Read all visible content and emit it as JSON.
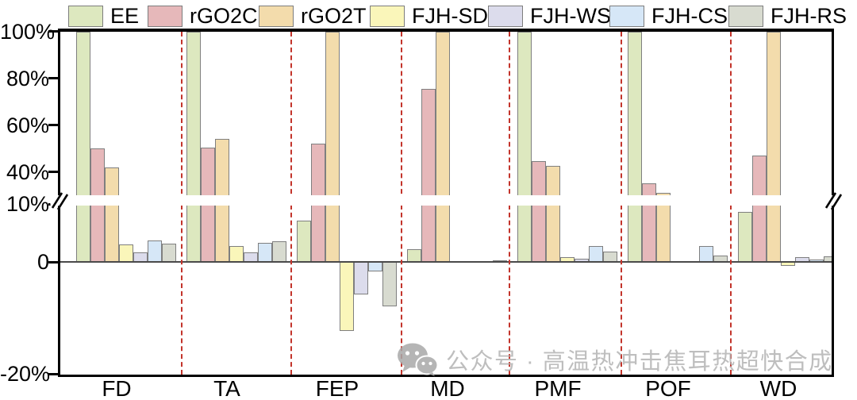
{
  "chart_data": {
    "type": "bar",
    "title": "",
    "xlabel": "",
    "ylabel": "",
    "categories": [
      "FD",
      "TA",
      "FEP",
      "MD",
      "PMF",
      "POF",
      "WD"
    ],
    "series": [
      {
        "name": "EE",
        "color": "#dde8bf",
        "values": [
          100,
          100,
          7.2,
          2.2,
          100,
          100,
          8.8
        ]
      },
      {
        "name": "rGO2C",
        "color": "#e6b8ba",
        "values": [
          50,
          50.5,
          52,
          75.5,
          44.5,
          35,
          47
        ]
      },
      {
        "name": "rGO2T",
        "color": "#f3dcac",
        "values": [
          42,
          54,
          100,
          100,
          42.5,
          31,
          100
        ]
      },
      {
        "name": "FJH-SD",
        "color": "#faf6ba",
        "values": [
          3.0,
          2.8,
          -12.4,
          0.1,
          0.9,
          0.15,
          -0.7
        ]
      },
      {
        "name": "FJH-WS",
        "color": "#dcdcec",
        "values": [
          1.6,
          1.6,
          -5.8,
          0.1,
          0.5,
          0.15,
          0.9
        ]
      },
      {
        "name": "FJH-CS",
        "color": "#d6e7f7",
        "values": [
          3.8,
          3.3,
          -1.7,
          0.1,
          2.8,
          2.8,
          0.4
        ]
      },
      {
        "name": "FJH-RS",
        "color": "#d8dbd0",
        "values": [
          3.2,
          3.6,
          -7.9,
          0.25,
          1.8,
          1.1,
          1.0
        ]
      }
    ],
    "y_axis": {
      "tick_labels": [
        "100%",
        "80%",
        "60%",
        "40%",
        "10%",
        "0",
        "-20%"
      ],
      "tick_values": [
        100,
        80,
        60,
        40,
        10,
        0,
        -20
      ],
      "ylim": [
        -20,
        100
      ],
      "axis_break": {
        "lower_max": 10,
        "upper_min": 30
      }
    },
    "legend_position": "top",
    "grid": false,
    "separator_color": "#c3342b",
    "bar_border_color": "#7f7f7f"
  },
  "watermark": {
    "logo": "wechat-icon",
    "text": "公众号 · 高温热冲击焦耳热超快合成",
    "color": "#b3b3b3"
  }
}
